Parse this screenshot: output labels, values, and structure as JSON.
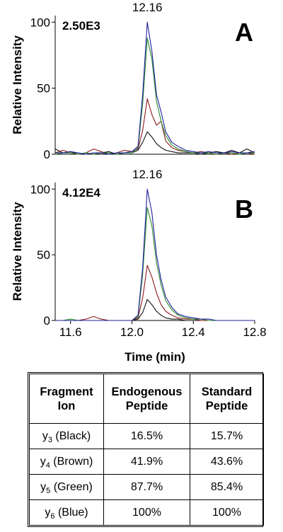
{
  "chart_data": [
    {
      "type": "line",
      "panel_label": "A",
      "annotation": "2.50E3",
      "peak_label": "12.16",
      "ylabel": "Relative Intensity",
      "yticks": [
        "0",
        "50",
        "100"
      ],
      "ylim": [
        0,
        105
      ],
      "xlim": [
        11.5,
        12.8
      ],
      "series": [
        {
          "color": "#1f1f9e",
          "x": [
            11.5,
            11.55,
            11.6,
            11.65,
            11.7,
            11.75,
            11.8,
            11.85,
            11.9,
            11.95,
            12.0,
            12.04,
            12.07,
            12.1,
            12.13,
            12.16,
            12.19,
            12.22,
            12.26,
            12.3,
            12.35,
            12.4,
            12.45,
            12.5,
            12.55,
            12.6,
            12.65,
            12.7,
            12.75,
            12.8
          ],
          "y": [
            1,
            1,
            2,
            1,
            0,
            1,
            1,
            0,
            1,
            1,
            2,
            6,
            45,
            100,
            78,
            45,
            32,
            17,
            9,
            6,
            3,
            2,
            1,
            2,
            1,
            1,
            2,
            1,
            1,
            2
          ]
        },
        {
          "color": "#2a8a2a",
          "x": [
            11.5,
            11.55,
            11.6,
            11.65,
            11.7,
            11.75,
            11.8,
            11.85,
            11.9,
            11.95,
            12.0,
            12.04,
            12.07,
            12.1,
            12.13,
            12.16,
            12.19,
            12.22,
            12.26,
            12.3,
            12.35,
            12.4,
            12.45,
            12.5,
            12.55,
            12.6,
            12.65,
            12.7,
            12.75,
            12.8
          ],
          "y": [
            0,
            1,
            1,
            0,
            1,
            0,
            1,
            1,
            0,
            1,
            1,
            5,
            38,
            88,
            72,
            40,
            25,
            14,
            7,
            4,
            2,
            1,
            1,
            1,
            0,
            1,
            1,
            0,
            1,
            1
          ]
        },
        {
          "color": "#8b1a1a",
          "x": [
            11.5,
            11.55,
            11.6,
            11.65,
            11.7,
            11.75,
            11.8,
            11.85,
            11.9,
            11.95,
            12.0,
            12.04,
            12.07,
            12.1,
            12.13,
            12.16,
            12.19,
            12.22,
            12.26,
            12.3,
            12.35,
            12.4,
            12.45,
            12.5,
            12.55,
            12.6,
            12.65,
            12.7,
            12.75,
            12.8
          ],
          "y": [
            1,
            3,
            1,
            0,
            1,
            4,
            2,
            0,
            1,
            3,
            2,
            4,
            18,
            42,
            30,
            22,
            25,
            10,
            5,
            3,
            2,
            1,
            2,
            1,
            0,
            1,
            0,
            1,
            1,
            0
          ]
        },
        {
          "color": "#111111",
          "x": [
            11.5,
            11.55,
            11.6,
            11.65,
            11.7,
            11.75,
            11.8,
            11.85,
            11.9,
            11.95,
            12.0,
            12.04,
            12.07,
            12.1,
            12.13,
            12.16,
            12.19,
            12.22,
            12.26,
            12.3,
            12.35,
            12.4,
            12.45,
            12.5,
            12.55,
            12.6,
            12.65,
            12.7,
            12.75,
            12.8
          ],
          "y": [
            4,
            1,
            2,
            0,
            1,
            0,
            1,
            2,
            0,
            1,
            1,
            3,
            9,
            17,
            13,
            8,
            5,
            3,
            2,
            1,
            1,
            1,
            0,
            1,
            2,
            1,
            3,
            1,
            4,
            1
          ]
        }
      ]
    },
    {
      "type": "line",
      "panel_label": "B",
      "annotation": "4.12E4",
      "peak_label": "12.16",
      "ylabel": "Relative Intensity",
      "xlabel": "Time (min)",
      "yticks": [
        "0",
        "50",
        "100"
      ],
      "xticks": [
        "11.6",
        "12.0",
        "12.4",
        "12.8"
      ],
      "ylim": [
        0,
        105
      ],
      "xlim": [
        11.5,
        12.8
      ],
      "series": [
        {
          "color": "#1f1f9e",
          "x": [
            11.5,
            11.55,
            11.6,
            11.65,
            11.7,
            11.75,
            11.8,
            11.85,
            11.9,
            11.95,
            12.0,
            12.04,
            12.07,
            12.1,
            12.13,
            12.16,
            12.19,
            12.22,
            12.26,
            12.3,
            12.35,
            12.4,
            12.45,
            12.5,
            12.55,
            12.6,
            12.65,
            12.7,
            12.75,
            12.8
          ],
          "y": [
            0,
            0,
            0,
            0,
            0,
            0,
            0,
            0,
            0,
            0,
            0,
            4,
            40,
            100,
            82,
            50,
            31,
            18,
            10,
            5,
            3,
            2,
            1,
            1,
            0,
            0,
            0,
            0,
            0,
            0
          ]
        },
        {
          "color": "#2a8a2a",
          "x": [
            11.5,
            11.55,
            11.6,
            11.65,
            11.7,
            11.75,
            11.8,
            11.85,
            11.9,
            11.95,
            12.0,
            12.04,
            12.07,
            12.1,
            12.13,
            12.16,
            12.19,
            12.22,
            12.26,
            12.3,
            12.35,
            12.4,
            12.45,
            12.5,
            12.55,
            12.6,
            12.65,
            12.7,
            12.75,
            12.8
          ],
          "y": [
            0,
            0,
            1,
            0,
            0,
            0,
            0,
            0,
            0,
            0,
            0,
            3,
            35,
            86,
            72,
            44,
            27,
            15,
            8,
            4,
            2,
            1,
            1,
            0,
            0,
            0,
            0,
            0,
            0,
            0
          ]
        },
        {
          "color": "#8b1a1a",
          "x": [
            11.5,
            11.55,
            11.6,
            11.65,
            11.7,
            11.75,
            11.8,
            11.85,
            11.9,
            11.95,
            12.0,
            12.04,
            12.07,
            12.1,
            12.13,
            12.16,
            12.19,
            12.22,
            12.26,
            12.3,
            12.35,
            12.4,
            12.45,
            12.5,
            12.55,
            12.6,
            12.65,
            12.7,
            12.75,
            12.8
          ],
          "y": [
            0,
            0,
            0,
            0,
            1,
            3,
            1,
            0,
            0,
            0,
            0,
            2,
            17,
            42,
            33,
            21,
            12,
            7,
            4,
            2,
            1,
            1,
            0,
            0,
            0,
            0,
            0,
            0,
            0,
            0
          ]
        },
        {
          "color": "#111111",
          "x": [
            11.5,
            11.55,
            11.6,
            11.65,
            11.7,
            11.75,
            11.8,
            11.85,
            11.9,
            11.95,
            12.0,
            12.04,
            12.07,
            12.1,
            12.13,
            12.16,
            12.19,
            12.22,
            12.26,
            12.3,
            12.35,
            12.4,
            12.45,
            12.5,
            12.55,
            12.6,
            12.65,
            12.7,
            12.75,
            12.8
          ],
          "y": [
            0,
            0,
            0,
            0,
            0,
            0,
            0,
            0,
            0,
            0,
            0,
            1,
            6,
            16,
            12,
            7,
            4,
            2,
            1,
            1,
            0,
            0,
            0,
            0,
            0,
            0,
            0,
            0,
            0,
            0
          ]
        }
      ]
    }
  ],
  "table": {
    "headers": [
      [
        "Fragment",
        "Ion"
      ],
      [
        "Endogenous",
        "Peptide"
      ],
      [
        "Standard",
        "Peptide"
      ]
    ],
    "rows": [
      {
        "ion": "y",
        "sub": "3",
        "color_name": "(Black)",
        "endogenous": "16.5%",
        "standard": "15.7%"
      },
      {
        "ion": "y",
        "sub": "4",
        "color_name": "(Brown)",
        "endogenous": "41.9%",
        "standard": "43.6%"
      },
      {
        "ion": "y",
        "sub": "5",
        "color_name": "(Green)",
        "endogenous": "87.7%",
        "standard": "85.4%"
      },
      {
        "ion": "y",
        "sub": "6",
        "color_name": "(Blue)",
        "endogenous": "100%",
        "standard": "100%"
      }
    ]
  }
}
